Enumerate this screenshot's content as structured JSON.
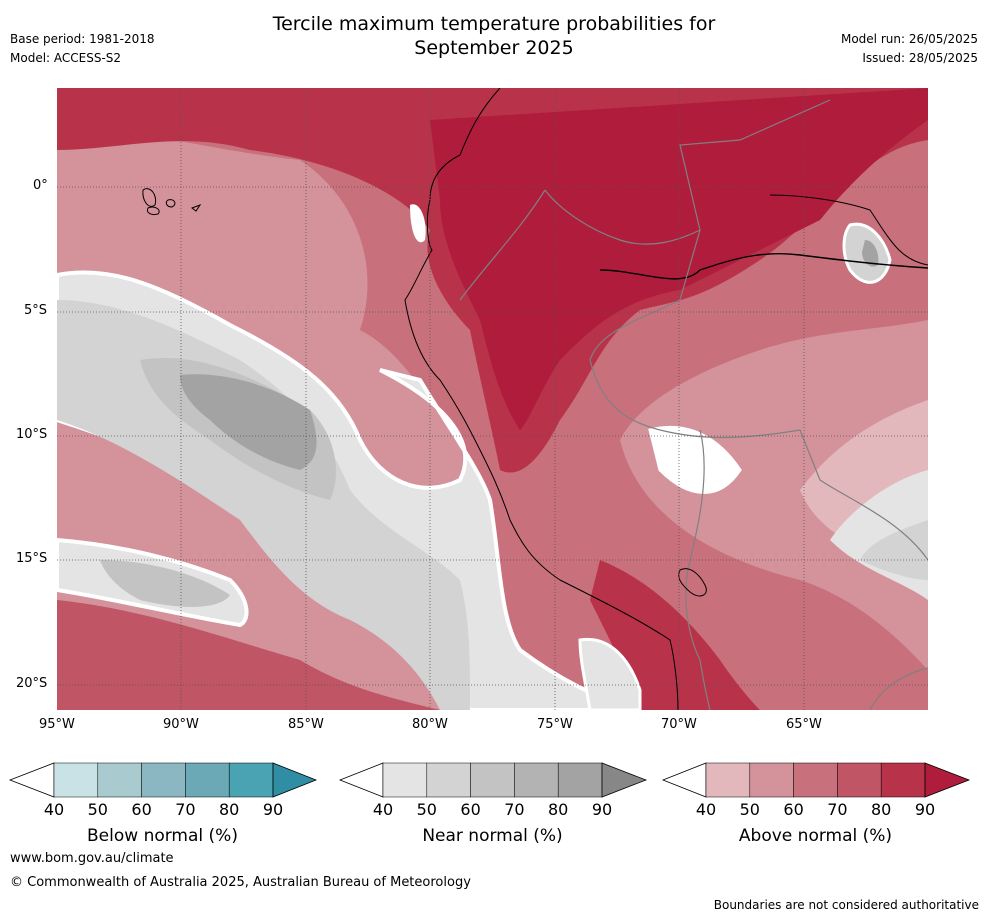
{
  "title_line1": "Tercile maximum temperature probabilities for",
  "title_line2": "September 2025",
  "meta_left": {
    "base_period": "Base period: 1981-2018",
    "model": "Model: ACCESS-S2"
  },
  "meta_right": {
    "model_run": "Model run: 26/05/2025",
    "issued": "Issued: 28/05/2025"
  },
  "map": {
    "lon_ticks": [
      "95°W",
      "90°W",
      "85°W",
      "80°W",
      "75°W",
      "70°W",
      "65°W"
    ],
    "lat_ticks": [
      "0°",
      "5°S",
      "10°S",
      "15°S",
      "20°S"
    ],
    "lon_range": [
      -95,
      -60
    ],
    "lat_range": [
      -21,
      4
    ],
    "grid": true
  },
  "colorbars": [
    {
      "label": "Below normal (%)",
      "ticks": [
        "40",
        "50",
        "60",
        "70",
        "80",
        "90"
      ],
      "colors": [
        "#ffffff",
        "#c9e2e6",
        "#a9cbd0",
        "#8ab7c1",
        "#6aa9b5",
        "#4aa3b2",
        "#2f8ea3"
      ]
    },
    {
      "label": "Near normal (%)",
      "ticks": [
        "40",
        "50",
        "60",
        "70",
        "80",
        "90"
      ],
      "colors": [
        "#ffffff",
        "#e4e4e4",
        "#d3d3d3",
        "#c3c3c3",
        "#b3b3b3",
        "#a3a3a3",
        "#878787"
      ]
    },
    {
      "label": "Above normal (%)",
      "ticks": [
        "40",
        "50",
        "60",
        "70",
        "80",
        "90"
      ],
      "colors": [
        "#ffffff",
        "#e2b8bd",
        "#d4929b",
        "#c8707b",
        "#bf5565",
        "#b8334a",
        "#b01c3c"
      ]
    }
  ],
  "footer": {
    "website": "www.bom.gov.au/climate",
    "copyright": "© Commonwealth of Australia 2025, Australian Bureau of Meteorology",
    "disclaimer": "Boundaries are not considered authoritative"
  }
}
